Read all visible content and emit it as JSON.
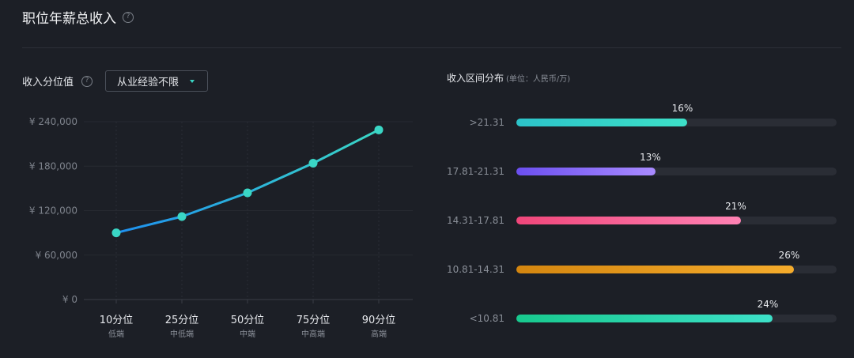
{
  "page": {
    "title": "职位年薪总收入",
    "help_icon": "question-circle-icon"
  },
  "left": {
    "label": "收入分位值",
    "help_icon": "question-circle-icon",
    "dropdown_value": "从业经验不限",
    "dropdown_icon": "caret-down-icon"
  },
  "right": {
    "title": "收入区间分布",
    "unit": "(单位：人民币/万)"
  },
  "chart_data": [
    {
      "type": "line",
      "categories": [
        "10分位",
        "25分位",
        "50分位",
        "75分位",
        "90分位"
      ],
      "sublabels": [
        "低端",
        "中低端",
        "中端",
        "中高端",
        "高端"
      ],
      "values": [
        90000,
        112000,
        144000,
        184000,
        229000
      ],
      "yticks": [
        "¥ 0",
        "¥ 60,000",
        "¥ 120,000",
        "¥ 180,000",
        "¥ 240,000"
      ],
      "ylim": [
        0,
        240000
      ],
      "grid": true,
      "colors": {
        "start": "#1e90f0",
        "end": "#3ad6c5",
        "point": "#3ad6c5"
      }
    },
    {
      "type": "bar",
      "orientation": "horizontal",
      "categories": [
        ">21.31",
        "17.81-21.31",
        "14.31-17.81",
        "10.81-14.31",
        "<10.81"
      ],
      "values": [
        16,
        13,
        21,
        26,
        24
      ],
      "labels": [
        "16%",
        "13%",
        "21%",
        "26%",
        "24%"
      ],
      "xlim": [
        0,
        30
      ],
      "colors": [
        [
          "#2cc3c9",
          "#3de0c8"
        ],
        [
          "#6b4ff0",
          "#a98bff"
        ],
        [
          "#f0467a",
          "#ff82b4"
        ],
        [
          "#d4860f",
          "#f5ac2c"
        ],
        [
          "#18c98e",
          "#3de0c8"
        ]
      ]
    }
  ]
}
